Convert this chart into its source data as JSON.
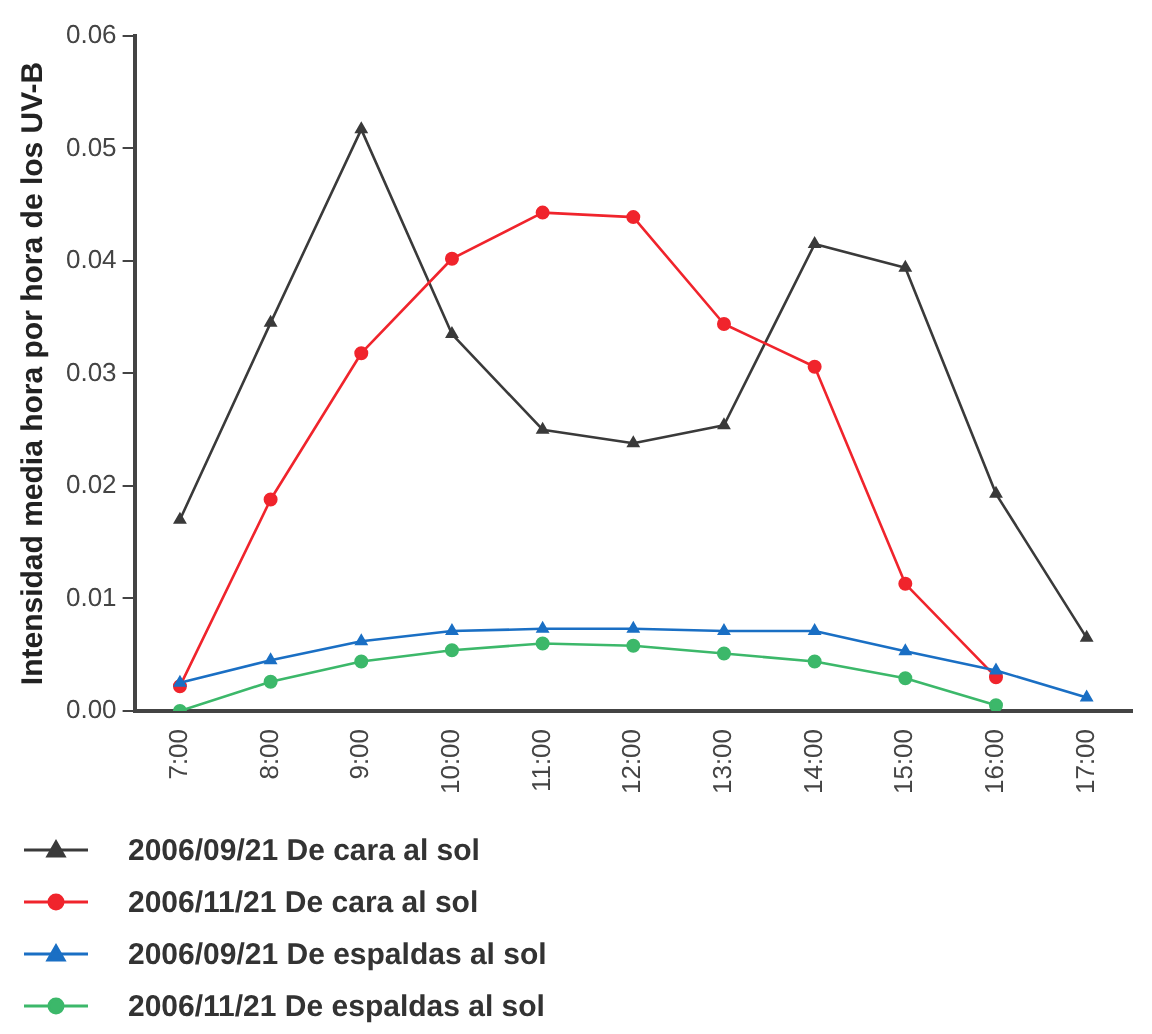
{
  "chart_data": {
    "type": "line",
    "ylabel": "Intensidad media hora por hora de los UV-B",
    "categories": [
      "7:00",
      "8:00",
      "9:00",
      "10:00",
      "11:00",
      "12:00",
      "13:00",
      "14:00",
      "15:00",
      "16:00",
      "17:00"
    ],
    "ylim": [
      0,
      0.06
    ],
    "yticks": [
      {
        "value": 0,
        "label": "0.00"
      },
      {
        "value": 0.01,
        "label": "0.01"
      },
      {
        "value": 0.02,
        "label": "0.02"
      },
      {
        "value": 0.03,
        "label": "0.03"
      },
      {
        "value": 0.04,
        "label": "0.04"
      },
      {
        "value": 0.05,
        "label": "0.05"
      },
      {
        "value": 0.06,
        "label": "0.06"
      }
    ],
    "grid": false,
    "legend": "bottom left",
    "line_style": "solid",
    "series": [
      {
        "name": "2006/09/21 De cara al sol",
        "color": "#3a3a3a",
        "marker": "triangle",
        "values": [
          0.017,
          0.0345,
          0.0517,
          0.0335,
          0.025,
          0.0238,
          0.0254,
          0.0415,
          0.0394,
          0.0193,
          0.0065
        ]
      },
      {
        "name": "2006/11/21 De cara al sol",
        "color": "#f0242c",
        "marker": "circle",
        "values": [
          0.0022,
          0.0188,
          0.0318,
          0.0402,
          0.0443,
          0.0439,
          0.0344,
          0.0306,
          0.0113,
          0.003,
          null
        ]
      },
      {
        "name": "2006/09/21 De espaldas al sol",
        "color": "#1a6fc4",
        "marker": "triangle",
        "values": [
          0.0025,
          0.0045,
          0.0062,
          0.0071,
          0.0073,
          0.0073,
          0.0071,
          0.0071,
          0.0053,
          0.0036,
          0.0012
        ]
      },
      {
        "name": "2006/11/21 De espaldas al sol",
        "color": "#3cb86a",
        "marker": "circle",
        "values": [
          0,
          0.0026,
          0.0044,
          0.0054,
          0.006,
          0.0058,
          0.0051,
          0.0044,
          0.0029,
          0.0005,
          null
        ]
      }
    ]
  }
}
